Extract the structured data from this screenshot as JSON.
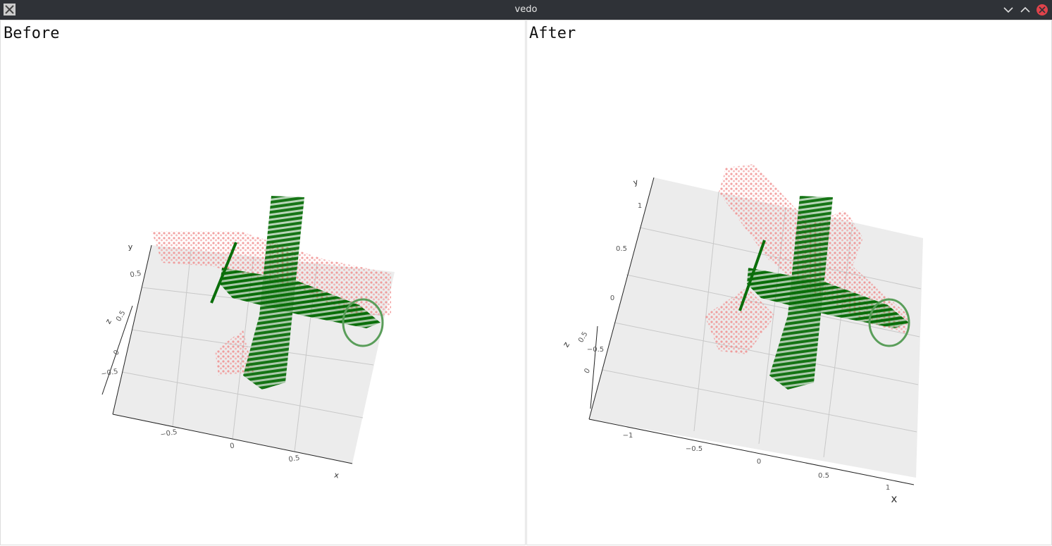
{
  "window": {
    "title": "vedo"
  },
  "panels": [
    {
      "title": "Before",
      "axes": {
        "x": {
          "label": "x",
          "ticks": [
            "−0.5",
            "0",
            "0.5"
          ]
        },
        "y": {
          "label": "y",
          "ticks": [
            "0.5"
          ]
        },
        "z": {
          "label": "z",
          "ticks": [
            "0.5",
            "0",
            "−0.5"
          ]
        }
      }
    },
    {
      "title": "After",
      "axes": {
        "x": {
          "label": "x",
          "ticks": [
            "−1",
            "−0.5",
            "0",
            "0.5",
            "1"
          ]
        },
        "y": {
          "label": "y",
          "ticks": [
            "1",
            "0.5",
            "0"
          ]
        },
        "z": {
          "label": "z",
          "ticks": [
            "0.5",
            "−0.5",
            "0"
          ]
        }
      }
    }
  ]
}
